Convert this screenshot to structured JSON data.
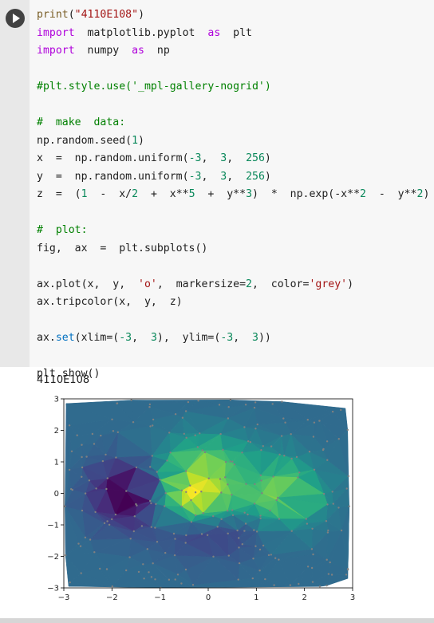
{
  "code_lines": [
    "print(\"4110E108\")",
    "import  matplotlib.pyplot  as  plt",
    "import  numpy  as  np",
    "",
    "#plt.style.use('_mpl-gallery-nogrid')",
    "",
    "#  make  data:",
    "np.random.seed(1)",
    "x  =  np.random.uniform(-3,  3,  256)",
    "y  =  np.random.uniform(-3,  3,  256)",
    "z  =  (1  -  x/2  +  x**5  +  y**3)  *  np.exp(-x**2  -  y**2)",
    "",
    "#  plot:",
    "fig,  ax  =  plt.subplots()",
    "",
    "ax.plot(x,  y,  'o',  markersize=2,  color='grey')",
    "ax.tripcolor(x,  y,  z)",
    "",
    "ax.set(xlim=(-3,  3),  ylim=(-3,  3))",
    "",
    "plt.show()"
  ],
  "output_text": "4110E108",
  "chart_data": {
    "type": "heatmap",
    "subtype": "tripcolor",
    "title": "",
    "xlabel": "",
    "ylabel": "",
    "xlim": [
      -3,
      3
    ],
    "ylim": [
      -3,
      3
    ],
    "xticks": [
      "−3",
      "−2",
      "−1",
      "0",
      "1",
      "2",
      "3"
    ],
    "yticks": [
      "3",
      "2",
      "1",
      "0",
      "−1",
      "−2",
      "−3"
    ],
    "colormap": "viridis",
    "marker_color": "#808080",
    "seed": 1,
    "n_points": 256
  }
}
